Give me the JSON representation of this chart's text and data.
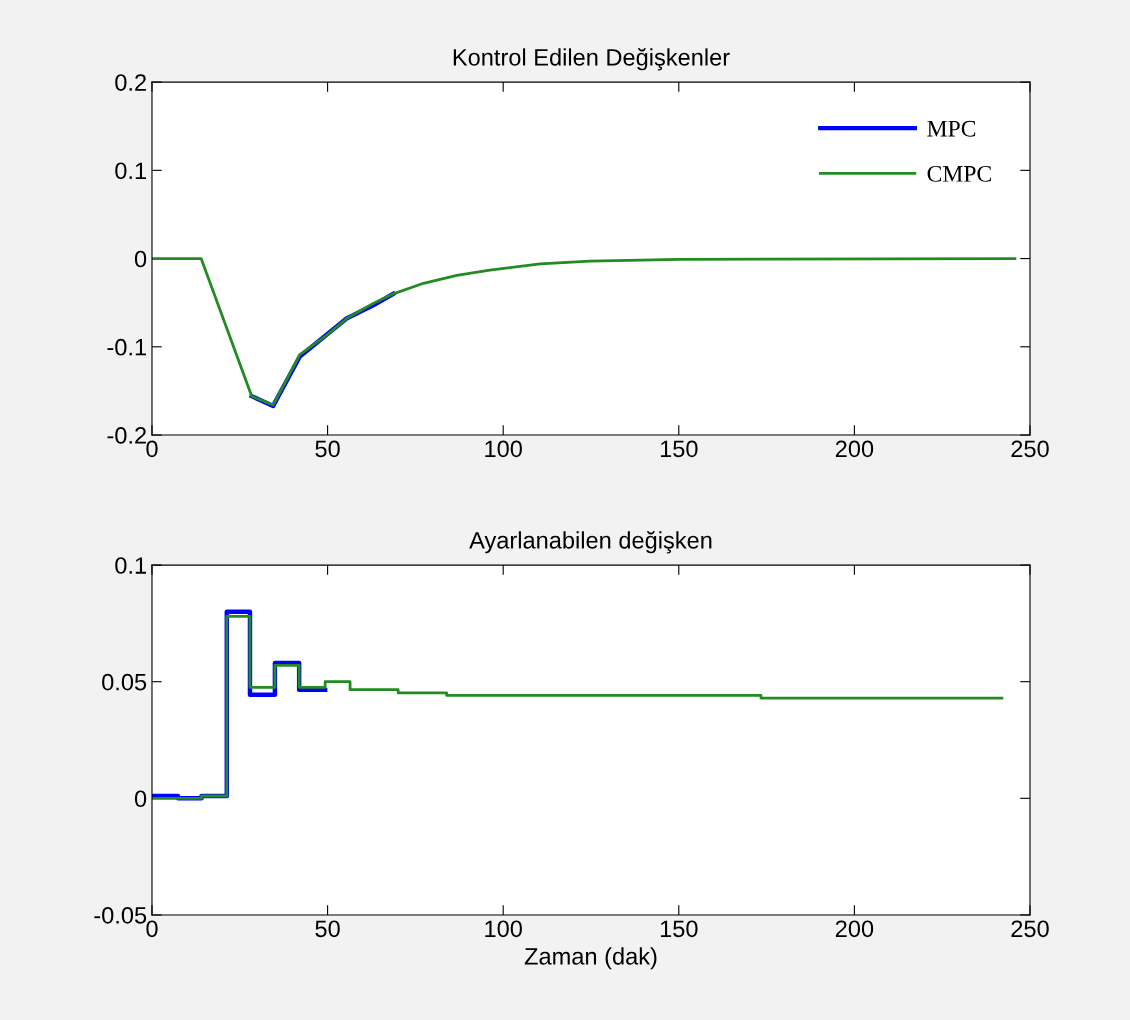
{
  "chart_data": [
    {
      "type": "line",
      "title": "Kontrol Edilen Değişkenler",
      "xlim": [
        0,
        250
      ],
      "xticks": [
        0,
        50,
        100,
        150,
        200,
        250
      ],
      "ylim": [
        -0.2,
        0.2
      ],
      "yticks": [
        -0.2,
        -0.1,
        0,
        0.1,
        0.2
      ],
      "grid": false,
      "legend": "top right",
      "series": [
        {
          "name": "MPC",
          "color": "#0000ff",
          "x": [
            28.4,
            34.5,
            42.1,
            55.4,
            63,
            68.7
          ],
          "values": [
            -0.156,
            -0.167,
            -0.111,
            -0.068,
            -0.053,
            -0.04
          ]
        },
        {
          "name": "CMPC",
          "color": "#228b22",
          "x": [
            0,
            14,
            28.4,
            34.5,
            42.1,
            49.7,
            55.4,
            63,
            68.7,
            77.3,
            86.8,
            96.2,
            110.5,
            124.7,
            150,
            245.7
          ],
          "values": [
            0,
            0,
            -0.156,
            -0.166,
            -0.109,
            -0.087,
            -0.068,
            -0.051,
            -0.04,
            -0.028,
            -0.019,
            -0.013,
            -0.006,
            -0.003,
            -0.001,
            0
          ]
        }
      ]
    },
    {
      "type": "step",
      "title": "Ayarlanabilen değişken",
      "xlabel": "Zaman (dak)",
      "xlim": [
        0,
        250
      ],
      "xticks": [
        0,
        50,
        100,
        150,
        200,
        250
      ],
      "ylim": [
        -0.05,
        0.1
      ],
      "yticks": [
        -0.05,
        0,
        0.05,
        0.1
      ],
      "grid": false,
      "series": [
        {
          "color": "#0000ff",
          "x": [
            0,
            7.4,
            14.1,
            21.3,
            27.9,
            35,
            41.9,
            49.3
          ],
          "values": [
            0.001,
            0,
            0.001,
            0.08,
            0.0444,
            0.058,
            0.0465,
            0.0465
          ]
        },
        {
          "color": "#228b22",
          "x": [
            0,
            14.1,
            21.3,
            27.9,
            35,
            41.9,
            49.3,
            56.4,
            70.1,
            83.9,
            173.4,
            242
          ],
          "values": [
            0,
            0.001,
            0.078,
            0.0476,
            0.057,
            0.0476,
            0.05,
            0.0466,
            0.0452,
            0.0441,
            0.043,
            0.043
          ]
        }
      ]
    }
  ]
}
